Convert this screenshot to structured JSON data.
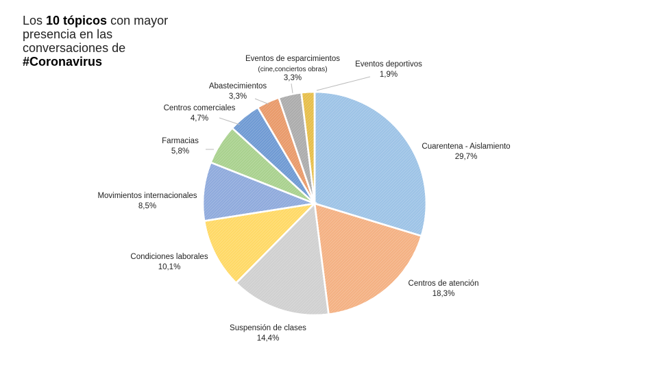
{
  "title": {
    "pre": "Los ",
    "bold": "10 tópicos",
    "post": " con mayor presencia en las conversaciones de",
    "hashtag": "#Coronavirus"
  },
  "chart_data": {
    "type": "pie",
    "title": "Los 10 tópicos con mayor presencia en las conversaciones de #Coronavirus",
    "start": "top, clockwise",
    "slices": [
      {
        "label": "Cuarentena - Aislamiento",
        "value": 29.7,
        "value_label": "29,7%",
        "color": "#9dc3e6"
      },
      {
        "label": "Centros de atención",
        "value": 18.3,
        "value_label": "18,3%",
        "color": "#f4b183"
      },
      {
        "label": "Suspensión de clases",
        "value": 14.4,
        "value_label": "14,4%",
        "color": "#d0d0d0"
      },
      {
        "label": "Condiciones laborales",
        "value": 10.1,
        "value_label": "10,1%",
        "color": "#ffd966"
      },
      {
        "label": "Movimientos internacionales",
        "value": 8.5,
        "value_label": "8,5%",
        "color": "#8faadc"
      },
      {
        "label": "Farmacias",
        "value": 5.8,
        "value_label": "5,8%",
        "color": "#a9d18e"
      },
      {
        "label": "Centros comerciales",
        "value": 4.7,
        "value_label": "4,7%",
        "color": "#6f9ad3"
      },
      {
        "label": "Abastecimientos",
        "value": 3.3,
        "value_label": "3,3%",
        "color": "#e99a6a"
      },
      {
        "label": "Eventos de esparcimientos",
        "sublabel": "(cine,conciertos obras)",
        "value": 3.3,
        "value_label": "3,3%",
        "color": "#acacac"
      },
      {
        "label": "Eventos deportivos",
        "value": 1.9,
        "value_label": "1,9%",
        "color": "#e6be4a"
      }
    ]
  }
}
